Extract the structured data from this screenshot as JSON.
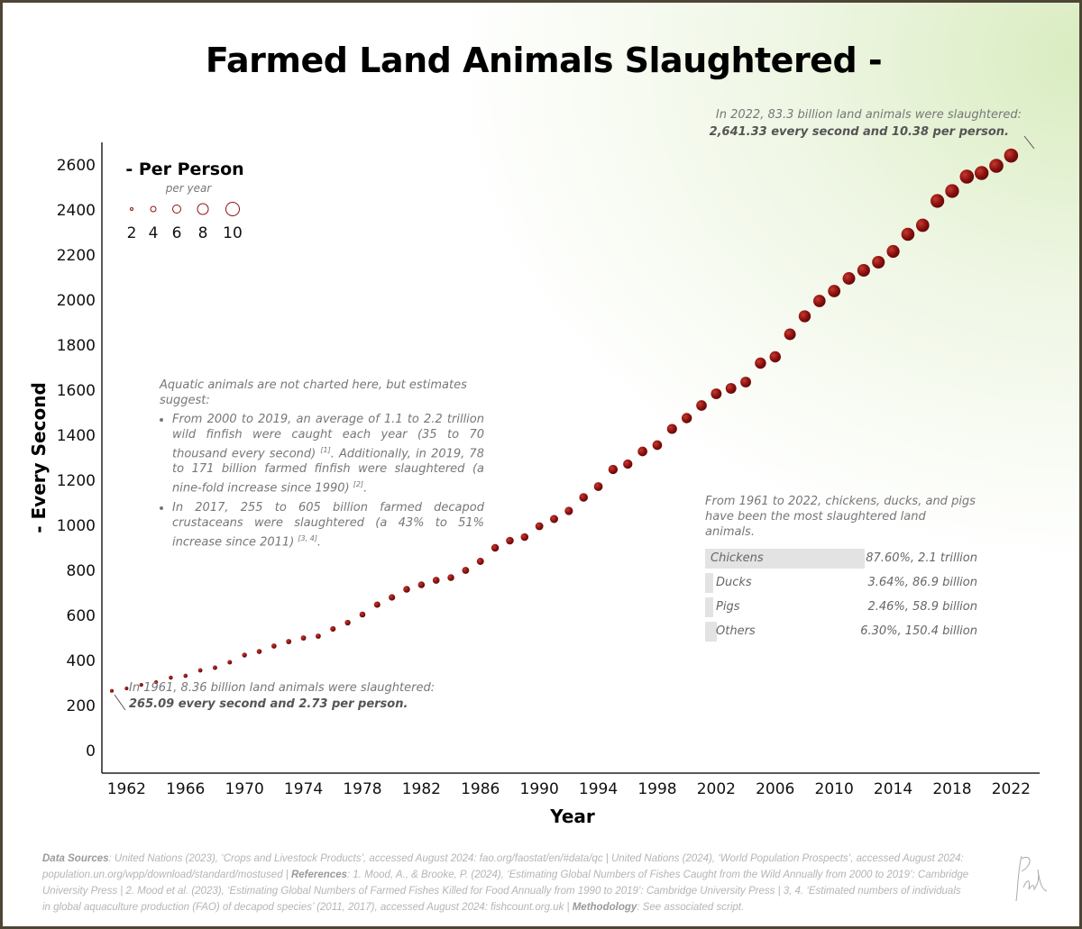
{
  "title": "Farmed Land Animals Slaughtered -",
  "chart_data": {
    "type": "scatter",
    "title": "Farmed Land Animals Slaughtered -",
    "xlabel": "Year",
    "ylabel": "- Every Second",
    "ylim": [
      0,
      2600
    ],
    "xlim": [
      1961,
      2022
    ],
    "y_ticks": [
      "0",
      "200",
      "400",
      "600",
      "800",
      "1000",
      "1200",
      "1400",
      "1600",
      "1800",
      "2000",
      "2200",
      "2400",
      "2600"
    ],
    "x_ticks": [
      "1962",
      "1966",
      "1970",
      "1974",
      "1978",
      "1982",
      "1986",
      "1990",
      "1994",
      "1998",
      "2002",
      "2006",
      "2010",
      "2014",
      "2018",
      "2022"
    ],
    "grid": false,
    "size_legend": {
      "title": "- Per Person",
      "subtitle": "per year",
      "values": [
        "2",
        "4",
        "6",
        "8",
        "10"
      ],
      "placement": "top-left"
    },
    "point_color": "#8b1010",
    "x": [
      1961,
      1962,
      1963,
      1964,
      1965,
      1966,
      1967,
      1968,
      1969,
      1970,
      1971,
      1972,
      1973,
      1974,
      1975,
      1976,
      1977,
      1978,
      1979,
      1980,
      1981,
      1982,
      1983,
      1984,
      1985,
      1986,
      1987,
      1988,
      1989,
      1990,
      1991,
      1992,
      1993,
      1994,
      1995,
      1996,
      1997,
      1998,
      1999,
      2000,
      2001,
      2002,
      2003,
      2004,
      2005,
      2006,
      2007,
      2008,
      2009,
      2010,
      2011,
      2012,
      2013,
      2014,
      2015,
      2016,
      2017,
      2018,
      2019,
      2020,
      2021,
      2022
    ],
    "every_second": [
      265.09,
      276,
      292,
      304,
      324,
      332,
      356,
      368,
      392,
      424,
      440,
      464,
      484,
      500,
      508,
      540,
      568,
      604,
      648,
      680,
      716,
      736,
      756,
      768,
      800,
      840,
      900,
      932,
      948,
      996,
      1028,
      1064,
      1124,
      1172,
      1248,
      1272,
      1328,
      1356,
      1428,
      1476,
      1532,
      1584,
      1608,
      1636,
      1720,
      1748,
      1848,
      1928,
      1996,
      2040,
      2096,
      2132,
      2168,
      2216,
      2292,
      2332,
      2440,
      2484,
      2548,
      2564,
      2596,
      2641.33
    ],
    "per_person": [
      2.73,
      2.8,
      2.9,
      2.9,
      3.0,
      3.1,
      3.2,
      3.3,
      3.4,
      3.6,
      3.7,
      3.8,
      3.9,
      3.9,
      3.9,
      4.1,
      4.2,
      4.4,
      4.7,
      4.8,
      5.0,
      5.0,
      5.1,
      5.0,
      5.2,
      5.3,
      5.6,
      5.7,
      5.7,
      5.9,
      6.0,
      6.1,
      6.4,
      6.5,
      6.9,
      6.9,
      7.1,
      7.1,
      7.4,
      7.6,
      7.8,
      7.9,
      7.9,
      7.9,
      8.3,
      8.3,
      8.6,
      8.9,
      9.1,
      9.2,
      9.3,
      9.4,
      9.4,
      9.5,
      9.7,
      9.8,
      10.1,
      10.2,
      10.4,
      10.3,
      10.4,
      10.38
    ],
    "annotations": {
      "start_line1": "In 1961, 8.36 billion land animals were slaughtered:",
      "start_line2": "265.09 every second and 2.73 per person.",
      "end_line1": "In 2022, 83.3 billion land animals were slaughtered:",
      "end_line2": "2,641.33 every second and 10.38 per person."
    }
  },
  "aquatic": {
    "intro": "Aquatic animals are not charted here, but estimates suggest:",
    "bullet1_a": "From 2000 to 2019, an average of 1.1 to 2.2 trillion wild finfish were caught each year (35 to 70 thousand every second) ",
    "bullet1_ref1": "[1]",
    "bullet1_b": ". Additionally, in 2019, 78 to 171 billion farmed finfish were slaughtered (a nine-fold increase since 1990) ",
    "bullet1_ref2": "[2]",
    "bullet2_a": "In 2017, 255 to 605 billion farmed decapod crustaceans were slaughtered (a 43% to 51% increase since 2011) ",
    "bullet2_ref": "[3, 4]"
  },
  "breakdown": {
    "intro": "From 1961 to 2022, chickens, ducks, and pigs have been the most slaughtered land animals.",
    "rows": [
      {
        "label": "Chickens",
        "share": 87.6,
        "value": "87.60%, 2.1 trillion"
      },
      {
        "label": "Ducks",
        "share": 3.64,
        "value": "3.64%, 86.9 billion"
      },
      {
        "label": "Pigs",
        "share": 2.46,
        "value": "2.46%, 58.9 billion"
      },
      {
        "label": "Others",
        "share": 6.3,
        "value": "6.30%, 150.4 billion"
      }
    ]
  },
  "footer": {
    "ds_label": "Data Sources",
    "ds_text": ": United Nations (2023), ‘Crops and Livestock Products’, accessed August 2024: fao.org/faostat/en/#data/qc | United Nations (2024), ‘World Population Prospects’, accessed August 2024: population.un.org/wpp/download/standard/mostused | ",
    "ref_label": "References",
    "ref_text": ": 1. Mood, A., & Brooke, P. (2024), ‘Estimating Global Numbers of Fishes Caught from the Wild Annually from 2000 to 2019’: Cambridge University Press | 2. Mood et al. (2023), ‘Estimating Global Numbers of Farmed Fishes Killed for Food Annually from 1990 to 2019’: Cambridge University Press | 3, 4. ‘Estimated numbers of individuals in global aquaculture production (FAO) of decapod species’ (2011, 2017), accessed August 2024: fishcount.org.uk | ",
    "meth_label": "Methodology",
    "meth_text": ": See associated script."
  }
}
